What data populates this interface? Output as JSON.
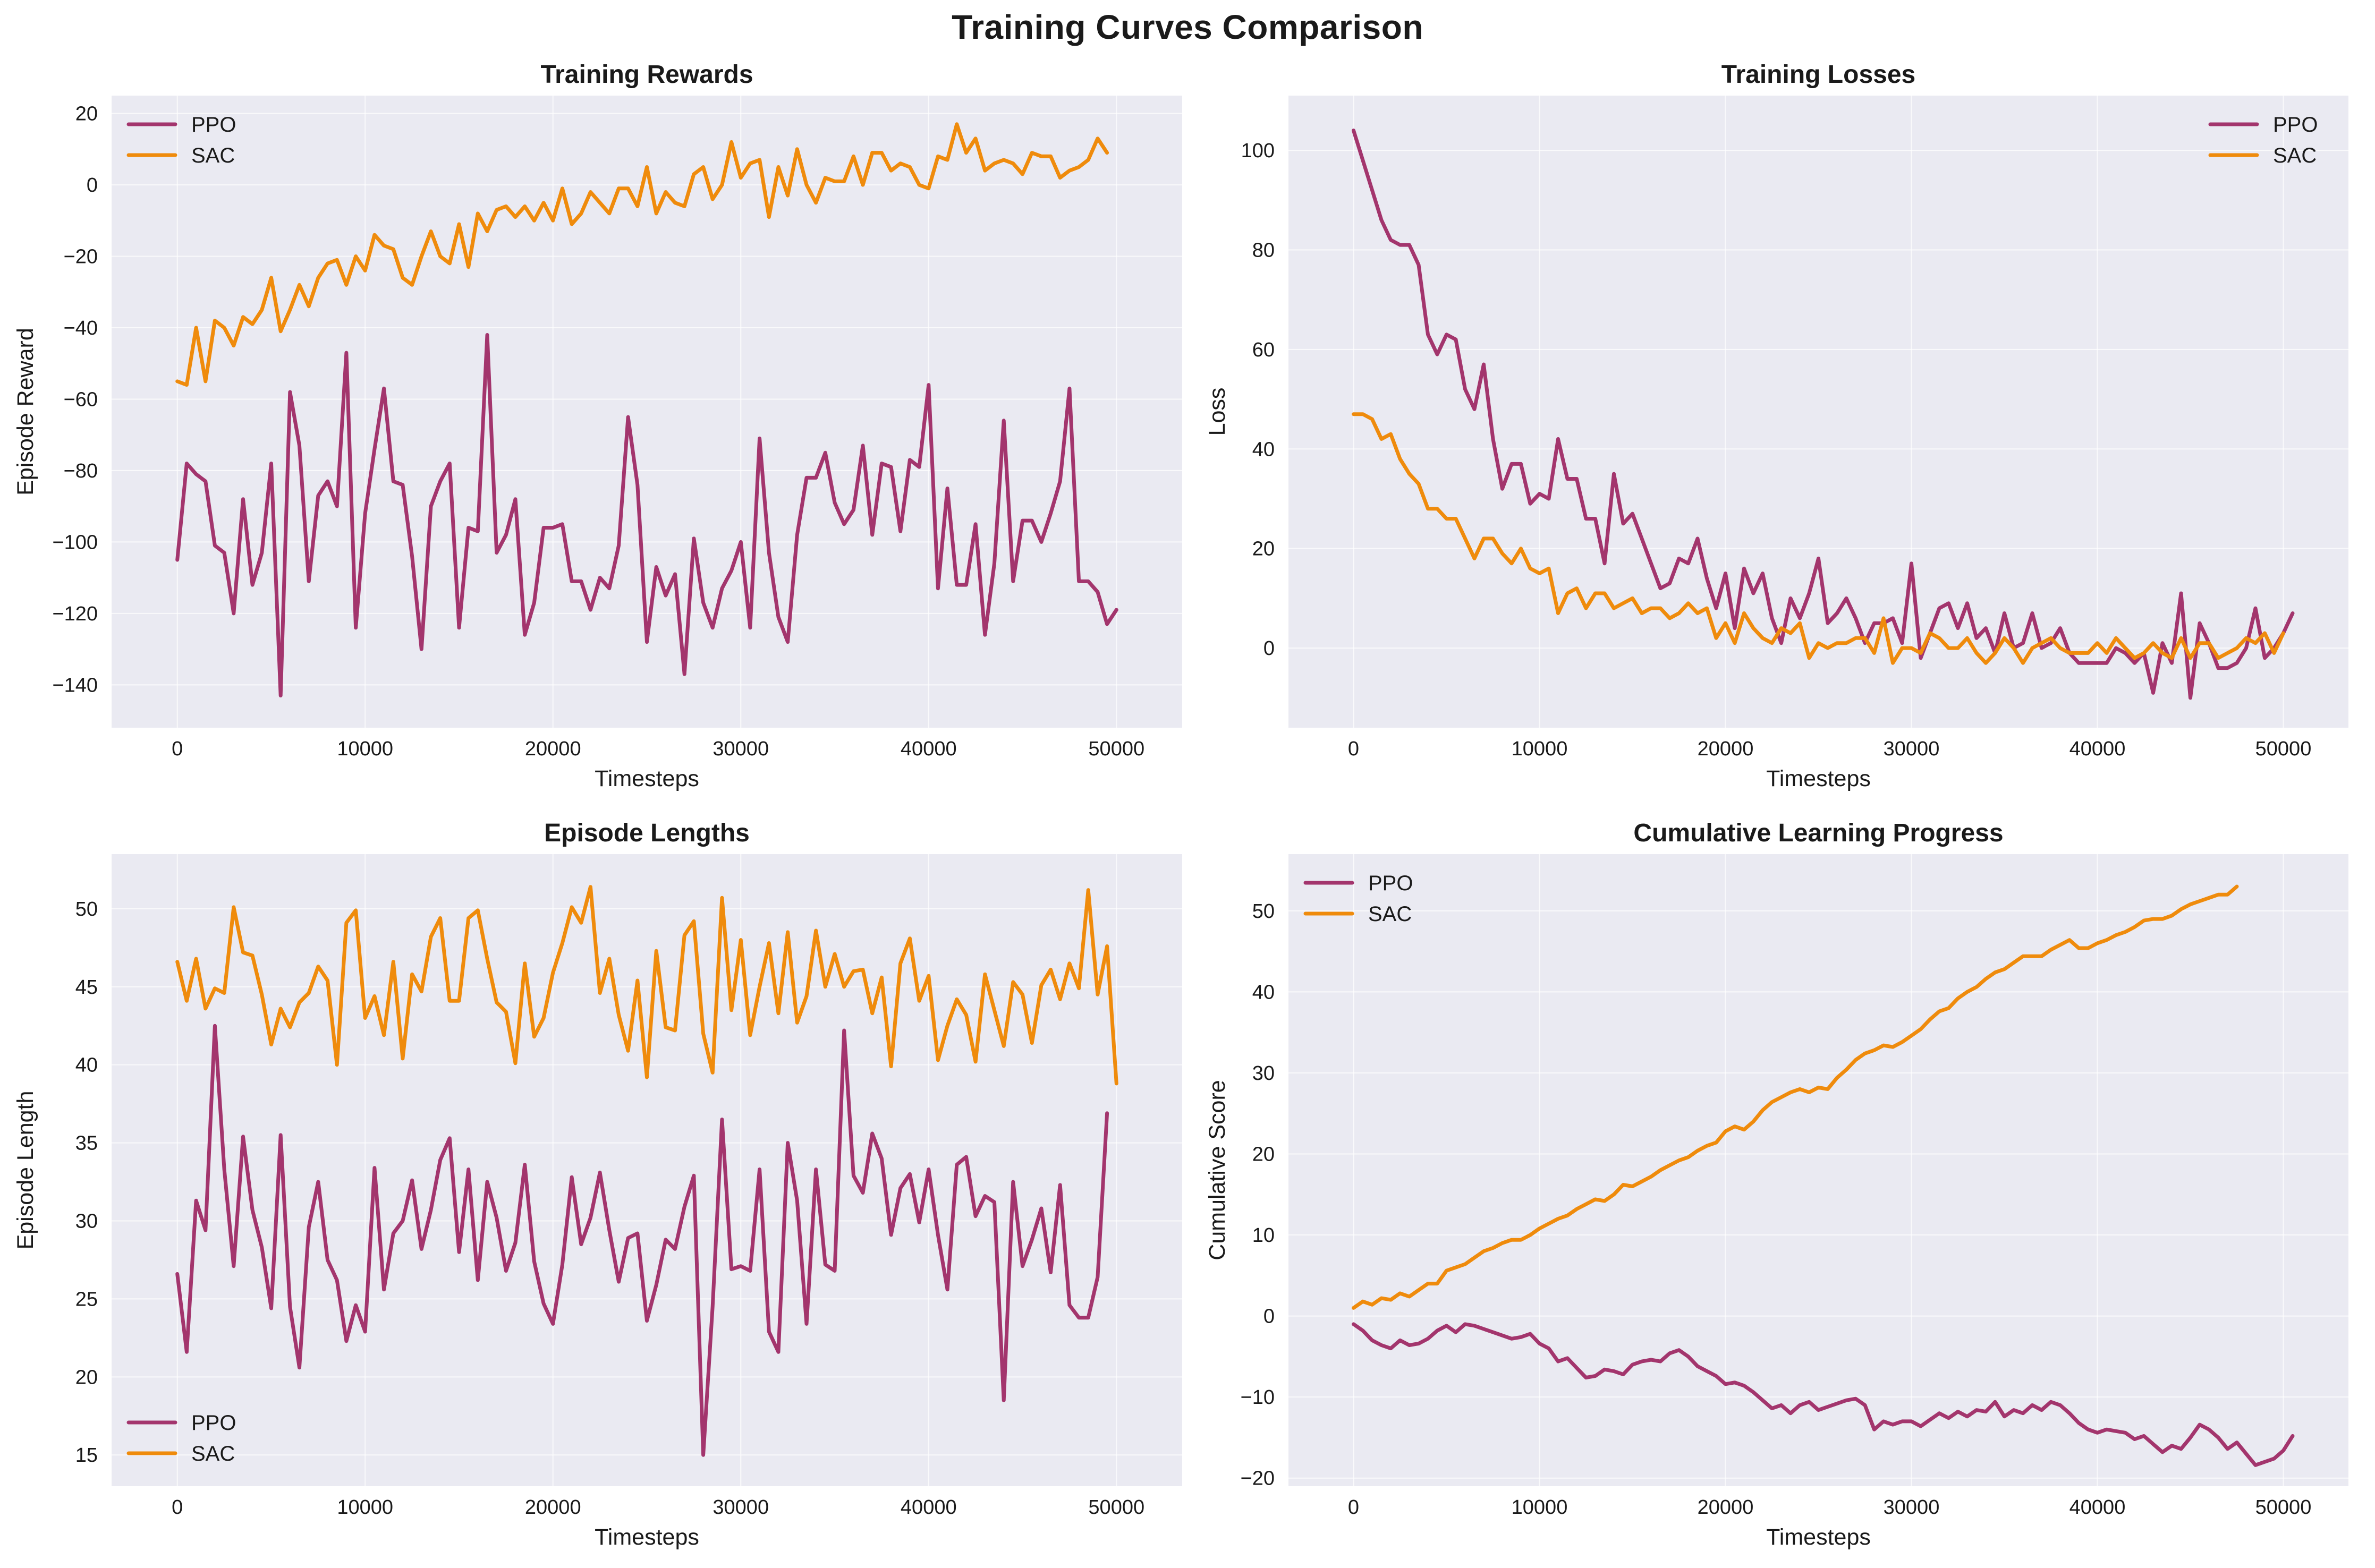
{
  "figure_title": "Training Curves Comparison",
  "colors": {
    "PPO": "#a3356d",
    "SAC": "#ef8b0c",
    "axes_bg": "#eaeaf2",
    "grid": "#ffffff"
  },
  "chart_data": [
    {
      "id": "rewards",
      "type": "line",
      "title": "Training Rewards",
      "xlabel": "Timesteps",
      "ylabel": "Episode Reward",
      "xlim": [
        -3500,
        53500
      ],
      "ylim": [
        -152,
        25
      ],
      "xticks": [
        0,
        10000,
        20000,
        30000,
        40000,
        50000
      ],
      "xtick_labels": [
        "0",
        "10000",
        "20000",
        "30000",
        "40000",
        "50000"
      ],
      "yticks": [
        -140,
        -120,
        -100,
        -80,
        -60,
        -40,
        -20,
        0,
        20
      ],
      "ytick_labels": [
        "−140",
        "−120",
        "−100",
        "−80",
        "−60",
        "−40",
        "−20",
        "0",
        "20"
      ],
      "legend": "upper-left",
      "grid": true,
      "x_start": 0,
      "x_step": 500,
      "series": [
        {
          "name": "PPO",
          "color": "#a3356d",
          "values": [
            -105,
            -78,
            -81,
            -83,
            -101,
            -103,
            -120,
            -88,
            -112,
            -103,
            -78,
            -143,
            -58,
            -73,
            -111,
            -87,
            -83,
            -90,
            -47,
            -124,
            -92,
            -74,
            -57,
            -83,
            -84,
            -104,
            -130,
            -90,
            -83,
            -78,
            -124,
            -96,
            -97,
            -42,
            -103,
            -98,
            -88,
            -126,
            -117,
            -96,
            -96,
            -95,
            -111,
            -111,
            -119,
            -110,
            -113,
            -101,
            -65,
            -84,
            -128,
            -107,
            -115,
            -109,
            -137,
            -99,
            -117,
            -124,
            -113,
            -108,
            -100,
            -124,
            -71,
            -103,
            -121,
            -128,
            -98,
            -82,
            -82,
            -75,
            -89,
            -95,
            -91,
            -73,
            -98,
            -78,
            -79,
            -97,
            -77,
            -79,
            -56,
            -113,
            -85,
            -112,
            -112,
            -95,
            -126,
            -106,
            -66,
            -111,
            -94,
            -94,
            -100,
            -92,
            -83,
            -57,
            -111,
            -111,
            -114,
            -123,
            -119
          ]
        },
        {
          "name": "SAC",
          "color": "#ef8b0c",
          "values": [
            -55,
            -56,
            -40,
            -55,
            -38,
            -40,
            -45,
            -37,
            -39,
            -35,
            -26,
            -41,
            -35,
            -28,
            -34,
            -26,
            -22,
            -21,
            -28,
            -20,
            -24,
            -14,
            -17,
            -18,
            -26,
            -28,
            -20,
            -13,
            -20,
            -22,
            -11,
            -23,
            -8,
            -13,
            -7,
            -6,
            -9,
            -6,
            -10,
            -5,
            -10,
            -1,
            -11,
            -8,
            -2,
            -5,
            -8,
            -1,
            -1,
            -6,
            5,
            -8,
            -2,
            -5,
            -6,
            3,
            5,
            -4,
            0,
            12,
            2,
            6,
            7,
            -9,
            5,
            -3,
            10,
            0,
            -5,
            2,
            1,
            1,
            8,
            0,
            9,
            9,
            4,
            6,
            5,
            0,
            -1,
            8,
            7,
            17,
            9,
            13,
            4,
            6,
            7,
            6,
            3,
            9,
            8,
            8,
            2,
            4,
            5,
            7,
            13,
            9
          ]
        }
      ]
    },
    {
      "id": "losses",
      "type": "line",
      "title": "Training Losses",
      "xlabel": "Timesteps",
      "ylabel": "Loss",
      "xlim": [
        -3500,
        53500
      ],
      "ylim": [
        -16,
        111
      ],
      "xticks": [
        0,
        10000,
        20000,
        30000,
        40000,
        50000
      ],
      "xtick_labels": [
        "0",
        "10000",
        "20000",
        "30000",
        "40000",
        "50000"
      ],
      "yticks": [
        0,
        20,
        40,
        60,
        80,
        100
      ],
      "ytick_labels": [
        "0",
        "20",
        "40",
        "60",
        "80",
        "100"
      ],
      "legend": "upper-right",
      "grid": true,
      "x_start": 0,
      "x_step": 500,
      "series": [
        {
          "name": "PPO",
          "color": "#a3356d",
          "values": [
            104,
            98,
            92,
            86,
            82,
            81,
            81,
            77,
            63,
            59,
            63,
            62,
            52,
            48,
            57,
            42,
            32,
            37,
            37,
            29,
            31,
            30,
            42,
            34,
            34,
            26,
            26,
            17,
            35,
            25,
            27,
            22,
            17,
            12,
            13,
            18,
            17,
            22,
            14,
            8,
            15,
            4,
            16,
            11,
            15,
            6,
            1,
            10,
            6,
            11,
            18,
            5,
            7,
            10,
            6,
            1,
            5,
            5,
            6,
            1,
            17,
            -2,
            3,
            8,
            9,
            4,
            9,
            2,
            4,
            -1,
            7,
            0,
            1,
            7,
            0,
            1,
            4,
            -1,
            -3,
            -3,
            -3,
            -3,
            0,
            -1,
            -3,
            -1,
            -9,
            1,
            -3,
            11,
            -10,
            5,
            1,
            -4,
            -4,
            -3,
            0,
            8,
            -2,
            0,
            3,
            7
          ]
        },
        {
          "name": "SAC",
          "color": "#ef8b0c",
          "values": [
            47,
            47,
            46,
            42,
            43,
            38,
            35,
            33,
            28,
            28,
            26,
            26,
            22,
            18,
            22,
            22,
            19,
            17,
            20,
            16,
            15,
            16,
            7,
            11,
            12,
            8,
            11,
            11,
            8,
            9,
            10,
            7,
            8,
            8,
            6,
            7,
            9,
            7,
            8,
            2,
            5,
            1,
            7,
            4,
            2,
            1,
            4,
            3,
            5,
            -2,
            1,
            0,
            1,
            1,
            2,
            2,
            -1,
            6,
            -3,
            0,
            0,
            -1,
            3,
            2,
            0,
            0,
            2,
            -1,
            -3,
            -1,
            2,
            0,
            -3,
            0,
            1,
            2,
            0,
            -1,
            -1,
            -1,
            1,
            -1,
            2,
            0,
            -2,
            -1,
            1,
            -1,
            -2,
            2,
            -2,
            1,
            1,
            -2,
            -1,
            0,
            2,
            1,
            3,
            -1,
            3
          ]
        }
      ]
    },
    {
      "id": "lengths",
      "type": "line",
      "title": "Episode Lengths",
      "xlabel": "Timesteps",
      "ylabel": "Episode Length",
      "xlim": [
        -3500,
        53500
      ],
      "ylim": [
        13,
        53.5
      ],
      "xticks": [
        0,
        10000,
        20000,
        30000,
        40000,
        50000
      ],
      "xtick_labels": [
        "0",
        "10000",
        "20000",
        "30000",
        "40000",
        "50000"
      ],
      "yticks": [
        15,
        20,
        25,
        30,
        35,
        40,
        45,
        50
      ],
      "ytick_labels": [
        "15",
        "20",
        "25",
        "30",
        "35",
        "40",
        "45",
        "50"
      ],
      "legend": "lower-left",
      "grid": true,
      "x_start": 0,
      "x_step": 500,
      "series": [
        {
          "name": "PPO",
          "color": "#a3356d",
          "values": [
            26.6,
            21.6,
            31.3,
            29.4,
            42.5,
            33.3,
            27.1,
            35.4,
            30.7,
            28.3,
            24.4,
            35.5,
            24.5,
            20.6,
            29.6,
            32.5,
            27.5,
            26.2,
            22.3,
            24.6,
            22.9,
            33.4,
            25.6,
            29.2,
            30.0,
            32.6,
            28.2,
            30.7,
            33.9,
            35.3,
            28.0,
            33.3,
            26.2,
            32.5,
            30.2,
            26.8,
            28.6,
            33.6,
            27.4,
            24.7,
            23.4,
            27.2,
            32.8,
            28.5,
            30.2,
            33.1,
            29.4,
            26.1,
            28.9,
            29.2,
            23.6,
            25.9,
            28.8,
            28.2,
            30.9,
            32.9,
            15.0,
            24.5,
            36.5,
            26.9,
            27.1,
            26.8,
            33.3,
            22.9,
            21.6,
            35.0,
            31.3,
            23.4,
            33.3,
            27.2,
            26.8,
            42.2,
            32.9,
            31.8,
            35.6,
            34.0,
            29.1,
            32.1,
            33.0,
            29.9,
            33.3,
            29.1,
            25.6,
            33.6,
            34.1,
            30.3,
            31.6,
            31.2,
            18.5,
            32.5,
            27.1,
            28.8,
            30.8,
            26.7,
            32.3,
            24.6,
            23.8,
            23.8,
            26.4,
            36.9
          ]
        },
        {
          "name": "SAC",
          "color": "#ef8b0c",
          "values": [
            46.6,
            44.1,
            46.8,
            43.6,
            44.9,
            44.6,
            50.1,
            47.2,
            47.0,
            44.5,
            41.3,
            43.6,
            42.4,
            44.0,
            44.6,
            46.3,
            45.4,
            40.0,
            49.1,
            49.9,
            43.0,
            44.4,
            41.9,
            46.6,
            40.4,
            45.8,
            44.7,
            48.2,
            49.4,
            44.1,
            44.1,
            49.4,
            49.9,
            46.8,
            44.0,
            43.4,
            40.1,
            46.5,
            41.8,
            43.0,
            45.9,
            47.8,
            50.1,
            49.1,
            51.4,
            44.6,
            46.8,
            43.2,
            40.9,
            45.4,
            39.2,
            47.3,
            42.4,
            42.2,
            48.3,
            49.2,
            42.0,
            39.5,
            50.7,
            43.5,
            48.0,
            41.9,
            45.0,
            47.8,
            43.3,
            48.5,
            42.7,
            44.4,
            48.6,
            45.0,
            47.1,
            45.0,
            46.0,
            46.1,
            43.3,
            45.6,
            39.9,
            46.5,
            48.1,
            44.1,
            45.7,
            40.3,
            42.5,
            44.2,
            43.2,
            40.2,
            45.8,
            43.5,
            41.2,
            45.3,
            44.5,
            41.4,
            45.1,
            46.1,
            44.2,
            46.5,
            44.9,
            51.2,
            44.5,
            47.6,
            38.8
          ]
        }
      ]
    },
    {
      "id": "cumulative",
      "type": "line",
      "title": "Cumulative Learning Progress",
      "xlabel": "Timesteps",
      "ylabel": "Cumulative Score",
      "xlim": [
        -3500,
        53500
      ],
      "ylim": [
        -21,
        57
      ],
      "xticks": [
        0,
        10000,
        20000,
        30000,
        40000,
        50000
      ],
      "xtick_labels": [
        "0",
        "10000",
        "20000",
        "30000",
        "40000",
        "50000"
      ],
      "yticks": [
        -20,
        -10,
        0,
        10,
        20,
        30,
        40,
        50
      ],
      "ytick_labels": [
        "−20",
        "−10",
        "0",
        "10",
        "20",
        "30",
        "40",
        "50"
      ],
      "legend": "upper-left",
      "grid": true,
      "x_start": 0,
      "x_step": 500,
      "series": [
        {
          "name": "PPO",
          "color": "#a3356d",
          "values": [
            -1.0,
            -1.8,
            -3.0,
            -3.6,
            -4.0,
            -3.0,
            -3.6,
            -3.4,
            -2.8,
            -1.8,
            -1.2,
            -2.0,
            -1.0,
            -1.2,
            -1.6,
            -2.0,
            -2.4,
            -2.8,
            -2.6,
            -2.2,
            -3.4,
            -4.0,
            -5.6,
            -5.2,
            -6.4,
            -7.6,
            -7.4,
            -6.6,
            -6.8,
            -7.2,
            -6.0,
            -5.6,
            -5.4,
            -5.6,
            -4.6,
            -4.2,
            -5.0,
            -6.2,
            -6.8,
            -7.4,
            -8.4,
            -8.2,
            -8.6,
            -9.4,
            -10.4,
            -11.4,
            -11.0,
            -12.0,
            -11.0,
            -10.6,
            -11.6,
            -11.2,
            -10.8,
            -10.4,
            -10.2,
            -11.0,
            -14.0,
            -13.0,
            -13.4,
            -13.0,
            -13.0,
            -13.6,
            -12.8,
            -12.0,
            -12.6,
            -11.8,
            -12.4,
            -11.6,
            -11.8,
            -10.6,
            -12.4,
            -11.6,
            -12.0,
            -11.0,
            -11.6,
            -10.6,
            -11.0,
            -12.0,
            -13.2,
            -14.0,
            -14.4,
            -14.0,
            -14.2,
            -14.4,
            -15.2,
            -14.8,
            -15.8,
            -16.8,
            -16.0,
            -16.4,
            -15.0,
            -13.4,
            -14.0,
            -15.0,
            -16.4,
            -15.6,
            -17.0,
            -18.4,
            -18.0,
            -17.6,
            -16.6,
            -14.8
          ]
        },
        {
          "name": "SAC",
          "color": "#ef8b0c",
          "values": [
            1.0,
            1.8,
            1.4,
            2.2,
            2.0,
            2.8,
            2.4,
            3.2,
            4.0,
            4.0,
            5.6,
            6.0,
            6.4,
            7.2,
            8.0,
            8.4,
            9.0,
            9.4,
            9.4,
            10.0,
            10.8,
            11.4,
            12.0,
            12.4,
            13.2,
            13.8,
            14.4,
            14.2,
            15.0,
            16.2,
            16.0,
            16.6,
            17.2,
            18.0,
            18.6,
            19.2,
            19.6,
            20.4,
            21.0,
            21.4,
            22.8,
            23.4,
            23.0,
            24.0,
            25.4,
            26.4,
            27.0,
            27.6,
            28.0,
            27.6,
            28.2,
            28.0,
            29.4,
            30.4,
            31.6,
            32.4,
            32.8,
            33.4,
            33.2,
            33.8,
            34.6,
            35.4,
            36.6,
            37.6,
            38.0,
            39.2,
            40.0,
            40.6,
            41.6,
            42.4,
            42.8,
            43.6,
            44.4,
            44.4,
            44.4,
            45.2,
            45.8,
            46.4,
            45.4,
            45.4,
            46.0,
            46.4,
            47.0,
            47.4,
            48.0,
            48.8,
            49.0,
            49.0,
            49.4,
            50.2,
            50.8,
            51.2,
            51.6,
            52.0,
            52.0,
            53.0
          ]
        }
      ]
    }
  ]
}
